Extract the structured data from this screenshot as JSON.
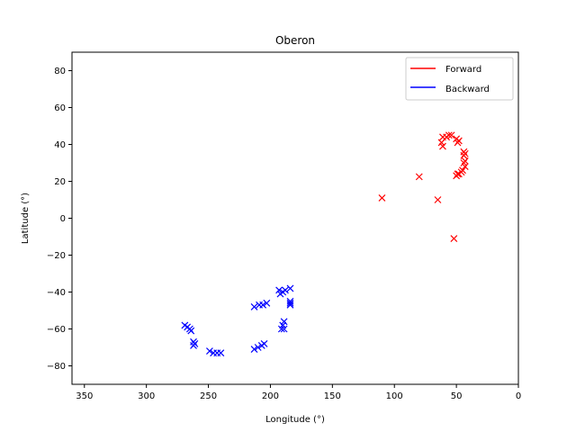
{
  "chart_data": {
    "type": "scatter",
    "title": "Oberon",
    "xlabel": "Longitude (°)",
    "ylabel": "Latitude (°)",
    "xlim": [
      360,
      0
    ],
    "ylim": [
      -90,
      90
    ],
    "xticks": [
      350,
      300,
      250,
      200,
      150,
      100,
      50,
      0
    ],
    "yticks": [
      80,
      60,
      40,
      20,
      0,
      -20,
      -40,
      -60,
      -80
    ],
    "grid": false,
    "legend_position": "upper right",
    "marker": "x",
    "series": [
      {
        "name": "Forward",
        "color": "#ff0000",
        "points": [
          [
            110,
            11
          ],
          [
            80,
            22.5
          ],
          [
            65,
            10
          ],
          [
            52,
            -11
          ],
          [
            61,
            39
          ],
          [
            62,
            41
          ],
          [
            61,
            44
          ],
          [
            58,
            44
          ],
          [
            56,
            45
          ],
          [
            54,
            45
          ],
          [
            50,
            43
          ],
          [
            48,
            42
          ],
          [
            49,
            41
          ],
          [
            44,
            36
          ],
          [
            43,
            35
          ],
          [
            44,
            34
          ],
          [
            43,
            31
          ],
          [
            44,
            30
          ],
          [
            43,
            28
          ],
          [
            45,
            26
          ],
          [
            46,
            25
          ],
          [
            48,
            24
          ],
          [
            50,
            23
          ],
          [
            49,
            24
          ]
        ]
      },
      {
        "name": "Backward",
        "color": "#0000ff",
        "points": [
          [
            184,
            -38
          ],
          [
            188,
            -39
          ],
          [
            190,
            -40
          ],
          [
            192,
            -41
          ],
          [
            193,
            -39
          ],
          [
            184,
            -45
          ],
          [
            184,
            -46
          ],
          [
            184,
            -47
          ],
          [
            189,
            -56
          ],
          [
            190,
            -58
          ],
          [
            191,
            -60
          ],
          [
            189,
            -60
          ],
          [
            203,
            -46
          ],
          [
            206,
            -47
          ],
          [
            209,
            -47
          ],
          [
            213,
            -48
          ],
          [
            205,
            -68
          ],
          [
            207,
            -69
          ],
          [
            210,
            -70
          ],
          [
            213,
            -71
          ],
          [
            240,
            -73
          ],
          [
            243,
            -73
          ],
          [
            246,
            -73
          ],
          [
            249,
            -72
          ],
          [
            262,
            -67
          ],
          [
            261,
            -68
          ],
          [
            262,
            -69
          ],
          [
            264,
            -61
          ],
          [
            265,
            -60
          ],
          [
            267,
            -59
          ],
          [
            269,
            -58
          ]
        ]
      }
    ]
  }
}
